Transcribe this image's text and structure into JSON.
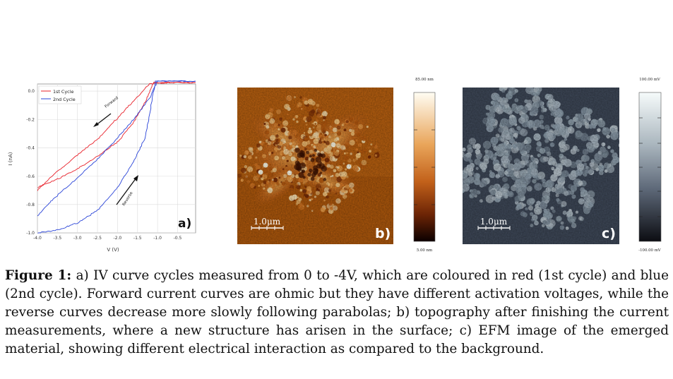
{
  "panel_a": {
    "label": "a)",
    "legend": [
      {
        "name": "1st Cycle",
        "color": "#e8202a"
      },
      {
        "name": "2nd Cycle",
        "color": "#2a44d8"
      }
    ],
    "forward_annotation": "Forward",
    "reverse_annotation": "Reverse",
    "xlabel": "V (V)",
    "ylabel": "I (nA)"
  },
  "chart_data": {
    "type": "line",
    "xlabel": "V (V)",
    "ylabel": "I (nA)",
    "xlim": [
      -4.0,
      -0.05
    ],
    "ylim": [
      -1.0,
      0.05
    ],
    "xticks": [
      "-4.0",
      "-3.5",
      "-3.0",
      "-2.5",
      "-2.0",
      "-1.5",
      "-1.0",
      "-0.5"
    ],
    "yticks": [
      "0.0",
      "-0.2",
      "-0.4",
      "-0.6",
      "-0.8",
      "-1.0"
    ],
    "grid": true,
    "legend_position": "top-left",
    "series": [
      {
        "name": "1st Cycle",
        "color": "#e8202a",
        "segment": "forward",
        "x": [
          -4.0,
          -3.6,
          -3.0,
          -2.5,
          -2.0,
          -1.6,
          -1.2,
          -0.7,
          -0.05
        ],
        "y": [
          -0.7,
          -0.59,
          -0.45,
          -0.34,
          -0.19,
          -0.07,
          0.05,
          0.06,
          0.06
        ]
      },
      {
        "name": "1st Cycle",
        "color": "#e8202a",
        "segment": "reverse",
        "x": [
          -4.0,
          -3.5,
          -3.0,
          -2.5,
          -2.0,
          -1.6,
          -1.3,
          -1.1,
          -0.05
        ],
        "y": [
          -0.68,
          -0.62,
          -0.55,
          -0.46,
          -0.36,
          -0.22,
          -0.07,
          0.06,
          0.06
        ]
      },
      {
        "name": "2nd Cycle",
        "color": "#2a44d8",
        "segment": "forward",
        "x": [
          -4.0,
          -3.6,
          -3.0,
          -2.5,
          -2.0,
          -1.6,
          -1.2,
          -1.0,
          -0.05
        ],
        "y": [
          -0.88,
          -0.76,
          -0.61,
          -0.48,
          -0.33,
          -0.2,
          -0.05,
          0.07,
          0.07
        ]
      },
      {
        "name": "2nd Cycle",
        "color": "#2a44d8",
        "segment": "reverse",
        "x": [
          -4.0,
          -3.5,
          -3.0,
          -2.5,
          -2.0,
          -1.6,
          -1.3,
          -1.05,
          -0.05
        ],
        "y": [
          -1.0,
          -0.98,
          -0.93,
          -0.84,
          -0.68,
          -0.5,
          -0.32,
          0.07,
          0.07
        ]
      }
    ]
  },
  "panel_b": {
    "label": "b)",
    "scale_bar": "1.0μm",
    "colorbar_max": "85.00 nm",
    "colorbar_min": "5.00 nm",
    "colors": [
      "#fffdf3",
      "#e0892c",
      "#9a3a05",
      "#0b0000"
    ]
  },
  "panel_c": {
    "label": "c)",
    "scale_bar": "1.0μm",
    "colorbar_max": "100.00 mV",
    "colorbar_min": "-100.00 mV",
    "colors": [
      "#f6fbfb",
      "#7e8c99",
      "#3c4656",
      "#0c0d12"
    ]
  },
  "caption": {
    "label": "Figure 1:",
    "text": "a) IV curve cycles measured from 0 to -4V, which are coloured in red (1st cycle) and blue (2nd cycle). Forward current curves are ohmic but they have different activation voltages, while the reverse curves decrease more slowly following parabolas; b) topography after finishing the current measurements, where a new structure has arisen in the surface; c) EFM image of the emerged material, showing different electrical interaction as compared to the background."
  }
}
